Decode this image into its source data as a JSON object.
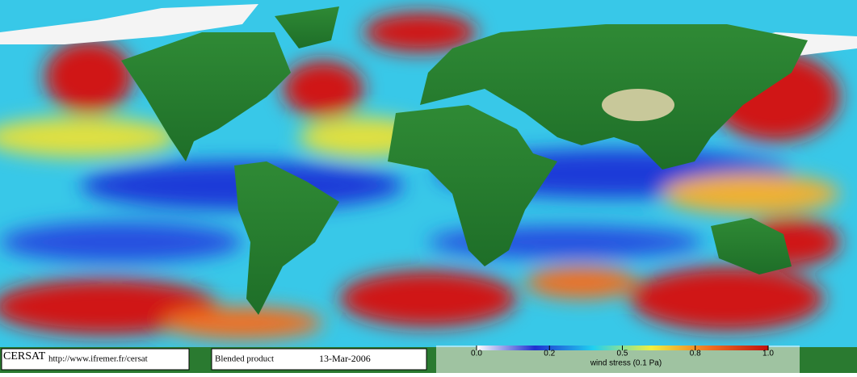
{
  "footer": {
    "logo": "CERSAT",
    "url": "http://www.ifremer.fr/cersat",
    "product": "Blended product",
    "date": "13-Mar-2006"
  },
  "colorbar": {
    "label": "wind stress (0.1 Pa)",
    "ticks": [
      {
        "value": 0,
        "label": "0.0"
      },
      0.2,
      0.5,
      0.8,
      {
        "value": 1,
        "label": "1.0"
      }
    ],
    "colors": [
      "#ffffff",
      "#2030d0",
      "#20d0f0",
      "#f0f040",
      "#f07020",
      "#c01010"
    ]
  }
}
